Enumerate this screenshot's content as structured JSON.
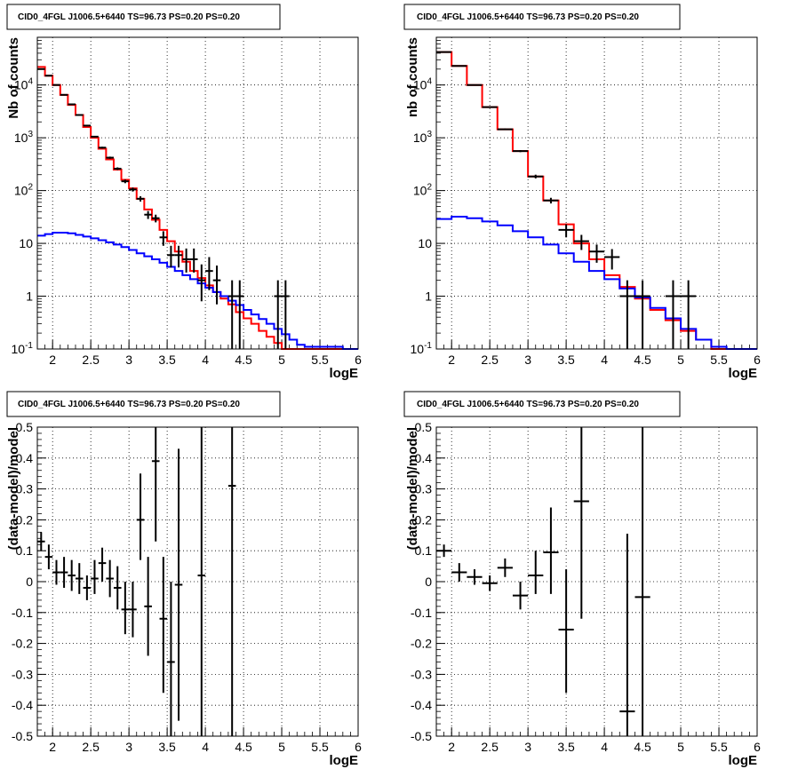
{
  "chart_data": [
    {
      "type": "line",
      "title": "CID0_4FGL J1006.5+6440 TS=96.73 PS=0.20 PS=0.20",
      "xlabel": "logE",
      "ylabel": "Nb of counts",
      "xlim": [
        1.8,
        6.0
      ],
      "ylim": [
        0.1,
        80000
      ],
      "yscale": "log",
      "grid": true,
      "x_ticks": [
        "2",
        "2.5",
        "3",
        "3.5",
        "4",
        "4.5",
        "5",
        "5.5",
        "6"
      ],
      "y_ticks": [
        "10^-1",
        "1",
        "10",
        "10^2",
        "10^3",
        "10^4"
      ],
      "series": [
        {
          "kind": "step",
          "color": "#ff0000",
          "edges": [
            1.8,
            1.9,
            2.0,
            2.1,
            2.2,
            2.3,
            2.4,
            2.5,
            2.6,
            2.7,
            2.8,
            2.9,
            3.0,
            3.1,
            3.2,
            3.3,
            3.4,
            3.5,
            3.6,
            3.7,
            3.8,
            3.9,
            4.0,
            4.1,
            4.2,
            4.3,
            4.4,
            4.5,
            4.6,
            4.7,
            4.8,
            4.9,
            5.0,
            5.1,
            5.2,
            5.3,
            5.4,
            5.5,
            5.6,
            5.7,
            5.8,
            5.9,
            6.0
          ],
          "values": [
            22000,
            15000,
            10000,
            6500,
            4200,
            2700,
            1600,
            1000,
            620,
            390,
            250,
            160,
            110,
            70,
            44,
            28,
            18,
            11,
            7,
            4.5,
            3.0,
            2.2,
            1.6,
            1.2,
            0.9,
            0.7,
            0.5,
            0.38,
            0.3,
            0.22,
            0.17,
            0.13,
            0.1,
            0.1,
            0.1,
            0.1,
            0.1,
            0.1,
            0.1,
            0.1,
            0.1,
            0.1
          ]
        },
        {
          "kind": "step",
          "color": "#0000ff",
          "edges": [
            1.8,
            1.9,
            2.0,
            2.1,
            2.2,
            2.3,
            2.4,
            2.5,
            2.6,
            2.7,
            2.8,
            2.9,
            3.0,
            3.1,
            3.2,
            3.3,
            3.4,
            3.5,
            3.6,
            3.7,
            3.8,
            3.9,
            4.0,
            4.1,
            4.2,
            4.3,
            4.4,
            4.5,
            4.6,
            4.7,
            4.8,
            4.9,
            5.0,
            5.1,
            5.2,
            5.3,
            5.4,
            5.5,
            5.6,
            5.7,
            5.8,
            5.9,
            6.0
          ],
          "values": [
            14,
            15,
            16,
            16,
            15.5,
            14.5,
            13.5,
            12.5,
            11.5,
            10.5,
            9.5,
            8.5,
            7.5,
            6.5,
            5.7,
            5.0,
            4.3,
            3.6,
            3.0,
            2.5,
            2.1,
            1.75,
            1.45,
            1.2,
            1.0,
            0.82,
            0.68,
            0.55,
            0.45,
            0.37,
            0.3,
            0.24,
            0.19,
            0.15,
            0.12,
            0.11,
            0.11,
            0.11,
            0.11,
            0.11,
            0.1,
            0.1
          ]
        },
        {
          "kind": "points",
          "color": "#000000",
          "x": [
            1.85,
            1.95,
            2.05,
            2.15,
            2.25,
            2.35,
            2.45,
            2.55,
            2.65,
            2.75,
            2.85,
            2.95,
            3.05,
            3.15,
            3.25,
            3.35,
            3.45,
            3.55,
            3.65,
            3.75,
            3.85,
            3.95,
            4.05,
            4.15,
            4.35,
            4.45,
            4.95,
            5.05
          ],
          "y": [
            20000,
            15000,
            10000,
            6500,
            4300,
            2700,
            1700,
            1050,
            650,
            420,
            260,
            150,
            105,
            70,
            35,
            30,
            13,
            6,
            6,
            5,
            5,
            2,
            3,
            2,
            1,
            1,
            1,
            1
          ],
          "xerr": 0.05,
          "ylow": [
            19800,
            14800,
            9900,
            6400,
            4200,
            2650,
            1650,
            1020,
            625,
            400,
            245,
            138,
            96,
            62,
            29,
            25,
            9,
            3.5,
            3.5,
            2.8,
            2.8,
            0.8,
            1.3,
            0.7,
            0.1,
            0.1,
            0.1,
            0.1
          ],
          "yhigh": [
            20200,
            15200,
            10100,
            6600,
            4400,
            2750,
            1750,
            1080,
            675,
            440,
            275,
            162,
            114,
            78,
            41,
            35,
            17,
            9,
            9,
            8,
            8,
            4,
            5.5,
            3.8,
            2,
            2,
            2,
            2
          ]
        }
      ]
    },
    {
      "type": "line",
      "title": "CID0_4FGL J1006.5+6440 TS=96.73 PS=0.20 PS=0.20",
      "xlabel": "logE",
      "ylabel": "nb of counts",
      "xlim": [
        1.8,
        6.0
      ],
      "ylim": [
        0.1,
        80000
      ],
      "yscale": "log",
      "grid": true,
      "x_ticks": [
        "2",
        "2.5",
        "3",
        "3.5",
        "4",
        "4.5",
        "5",
        "5.5",
        "6"
      ],
      "y_ticks": [
        "10^-1",
        "1",
        "10",
        "10^2",
        "10^3",
        "10^4"
      ],
      "series": [
        {
          "kind": "step",
          "color": "#ff0000",
          "edges": [
            1.8,
            2.0,
            2.2,
            2.4,
            2.6,
            2.8,
            3.0,
            3.2,
            3.4,
            3.6,
            3.8,
            4.0,
            4.2,
            4.4,
            4.6,
            4.8,
            5.0,
            5.2,
            5.4,
            5.6,
            5.8,
            6.0
          ],
          "values": [
            42000,
            23000,
            10000,
            3800,
            1450,
            560,
            185,
            65,
            23,
            10,
            5,
            2.5,
            1.5,
            0.9,
            0.55,
            0.35,
            0.22,
            0.15,
            0.1,
            0.1,
            0.1
          ]
        },
        {
          "kind": "step",
          "color": "#0000ff",
          "edges": [
            1.8,
            2.0,
            2.2,
            2.4,
            2.6,
            2.8,
            3.0,
            3.2,
            3.4,
            3.6,
            3.8,
            4.0,
            4.2,
            4.4,
            4.6,
            4.8,
            5.0,
            5.2,
            5.4,
            5.6,
            5.8,
            6.0
          ],
          "values": [
            29,
            32,
            30,
            26,
            22,
            17,
            13,
            9.5,
            6.5,
            4.5,
            3.0,
            2.1,
            1.4,
            0.95,
            0.6,
            0.38,
            0.24,
            0.15,
            0.11,
            0.1,
            0.1
          ]
        },
        {
          "kind": "points",
          "color": "#000000",
          "x": [
            1.9,
            2.1,
            2.3,
            2.5,
            2.7,
            2.9,
            3.1,
            3.3,
            3.5,
            3.7,
            3.9,
            4.1,
            4.3,
            4.5,
            4.9,
            5.1
          ],
          "y": [
            42000,
            23000,
            10000,
            3800,
            1450,
            560,
            185,
            65,
            18,
            11,
            7,
            5.5,
            1,
            1,
            1,
            1
          ],
          "xerr": 0.1,
          "ylow": [
            41600,
            22700,
            9800,
            3700,
            1400,
            535,
            170,
            57,
            13,
            7.5,
            4.3,
            3.2,
            0.1,
            0.1,
            0.1,
            0.1
          ],
          "yhigh": [
            42400,
            23300,
            10200,
            3900,
            1500,
            585,
            200,
            73,
            23,
            14.5,
            9.5,
            7.8,
            2,
            2,
            2,
            2
          ]
        }
      ]
    },
    {
      "type": "scatter",
      "title": "CID0_4FGL J1006.5+6440 TS=96.73 PS=0.20 PS=0.20",
      "xlabel": "logE",
      "ylabel": "(data-model)/model",
      "xlim": [
        1.8,
        6.0
      ],
      "ylim": [
        -0.5,
        0.5
      ],
      "grid": true,
      "x_ticks": [
        "2",
        "2.5",
        "3",
        "3.5",
        "4",
        "4.5",
        "5",
        "5.5",
        "6"
      ],
      "y_ticks": [
        "-0.5",
        "-0.4",
        "-0.3",
        "-0.2",
        "-0.1",
        "0",
        "0.1",
        "0.2",
        "0.3",
        "0.4",
        "0.5"
      ],
      "points": {
        "x": [
          1.85,
          1.95,
          2.05,
          2.15,
          2.25,
          2.35,
          2.45,
          2.55,
          2.65,
          2.75,
          2.85,
          2.95,
          3.05,
          3.15,
          3.25,
          3.35,
          3.45,
          3.55,
          3.65,
          3.95,
          4.35
        ],
        "y": [
          0.13,
          0.08,
          0.03,
          0.03,
          0.02,
          0.01,
          -0.02,
          0.01,
          0.06,
          0.01,
          -0.02,
          -0.09,
          -0.09,
          0.2,
          -0.08,
          0.39,
          -0.12,
          -0.26,
          -0.01,
          0.02,
          0.31
        ],
        "xerr": 0.05,
        "ylow": [
          0.1,
          0.04,
          -0.01,
          -0.02,
          -0.03,
          -0.04,
          -0.06,
          -0.04,
          0.0,
          -0.05,
          -0.09,
          -0.17,
          -0.18,
          0.07,
          -0.24,
          0.13,
          -0.36,
          -0.5,
          -0.45,
          -0.5,
          -0.5
        ],
        "yhigh": [
          0.16,
          0.12,
          0.07,
          0.08,
          0.07,
          0.06,
          0.02,
          0.07,
          0.11,
          0.07,
          0.05,
          0.0,
          0.0,
          0.35,
          0.08,
          0.5,
          0.08,
          0.0,
          0.43,
          0.5,
          0.5
        ]
      }
    },
    {
      "type": "scatter",
      "title": "CID0_4FGL J1006.5+6440 TS=96.73 PS=0.20 PS=0.20",
      "xlabel": "logE",
      "ylabel": "(data-model)/model",
      "xlim": [
        1.8,
        6.0
      ],
      "ylim": [
        -0.5,
        0.5
      ],
      "grid": true,
      "x_ticks": [
        "2",
        "2.5",
        "3",
        "3.5",
        "4",
        "4.5",
        "5",
        "5.5",
        "6"
      ],
      "y_ticks": [
        "-0.5",
        "-0.4",
        "-0.3",
        "-0.2",
        "-0.1",
        "0",
        "0.1",
        "0.2",
        "0.3",
        "0.4",
        "0.5"
      ],
      "points": {
        "x": [
          1.9,
          2.1,
          2.3,
          2.5,
          2.7,
          2.9,
          3.1,
          3.3,
          3.5,
          3.7,
          4.3,
          4.5
        ],
        "y": [
          0.1,
          0.03,
          0.015,
          -0.005,
          0.045,
          -0.045,
          0.02,
          0.095,
          -0.155,
          0.26,
          -0.42,
          -0.05
        ],
        "xerr": 0.1,
        "ylow": [
          0.08,
          0.0,
          -0.01,
          -0.03,
          0.015,
          -0.09,
          -0.04,
          -0.04,
          -0.36,
          -0.12,
          -0.5,
          -0.5
        ],
        "yhigh": [
          0.12,
          0.06,
          0.04,
          0.02,
          0.075,
          0.0,
          0.1,
          0.24,
          0.04,
          0.5,
          0.155,
          0.5
        ]
      }
    }
  ]
}
